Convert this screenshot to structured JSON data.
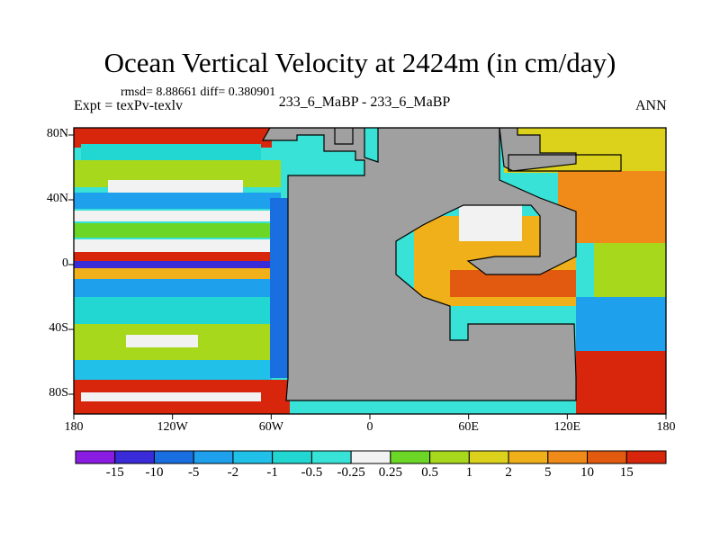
{
  "title": "Ocean Vertical Velocity at 2424m (in cm/day)",
  "stats_line": "rmsd= 8.88661 diff= 0.380901",
  "expt_label": "Expt = texPv-texlv",
  "case_label": "233_6_MaBP - 233_6_MaBP",
  "season_label": "ANN",
  "axes": {
    "lat_ticks": [
      "80N",
      "40N",
      "0",
      "40S",
      "80S"
    ],
    "lon_ticks": [
      "180",
      "120W",
      "60W",
      "0",
      "60E",
      "120E",
      "180"
    ]
  },
  "colorbar": {
    "levels": [
      "-15",
      "-10",
      "-5",
      "-2",
      "-1",
      "-0.5",
      "-0.25",
      "0.25",
      "0.5",
      "1",
      "2",
      "5",
      "10",
      "15"
    ],
    "colors": [
      "#8a1be0",
      "#3a2bd8",
      "#1a6fe0",
      "#1ea0ec",
      "#20c0e8",
      "#22d6d2",
      "#38e2d6",
      "#f2f2f2",
      "#6cd626",
      "#a8d81c",
      "#dcd21c",
      "#f0b01a",
      "#f08a18",
      "#e25a10",
      "#d8260c"
    ]
  },
  "colors": {
    "land": "#a0a0a0",
    "coast": "#000000",
    "background": "#ffffff"
  }
}
